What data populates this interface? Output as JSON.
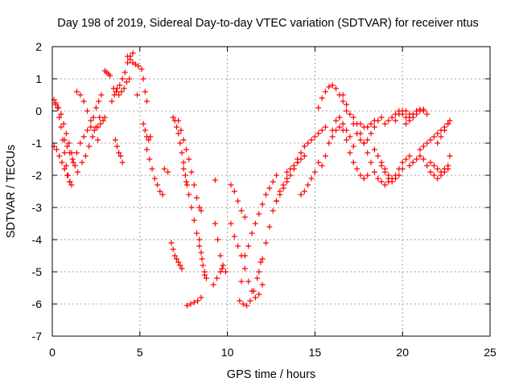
{
  "chart_data": {
    "type": "scatter",
    "title": "Day 198 of 2019, Sidereal Day-to-day VTEC variation (SDTVAR) for receiver ntus",
    "xlabel": "GPS time / hours",
    "ylabel": "SDTVAR / TECUs",
    "xlim": [
      0,
      25
    ],
    "ylim": [
      -7,
      2
    ],
    "x_ticks": [
      0,
      5,
      10,
      15,
      20,
      25
    ],
    "y_ticks": [
      -7,
      -6,
      -5,
      -4,
      -3,
      -2,
      -1,
      0,
      1,
      2
    ],
    "grid": true,
    "marker": "+",
    "color": "#ff0000",
    "series": [
      {
        "x": [
          0.1,
          0.2,
          0.3,
          0.4,
          0.5,
          0.6,
          0.7,
          0.8,
          0.9,
          1.0,
          1.1
        ],
        "y": [
          0.35,
          0.25,
          0.1,
          -0.2,
          -0.5,
          -0.9,
          -1.3,
          -1.7,
          -2.0,
          -2.2,
          -2.3
        ]
      },
      {
        "x": [
          0.1,
          0.25,
          0.4,
          0.55,
          0.7,
          0.85,
          1.0
        ],
        "y": [
          -1.1,
          -1.2,
          -1.4,
          -1.6,
          -1.8,
          -2.0,
          -2.2
        ]
      },
      {
        "x": [
          0.2,
          0.35,
          0.5,
          0.65,
          0.8,
          0.95,
          1.1
        ],
        "y": [
          0.2,
          0.1,
          -0.1,
          -0.4,
          -0.7,
          -1.0,
          -1.3
        ]
      },
      {
        "x": [
          0.7,
          0.85,
          1.0,
          1.15,
          1.3,
          1.45
        ],
        "y": [
          -0.9,
          -1.1,
          -1.3,
          -1.5,
          -1.7,
          -1.9
        ]
      },
      {
        "x": [
          1.2,
          1.4,
          1.6,
          1.8,
          2.0
        ],
        "y": [
          -1.6,
          -1.3,
          -1.0,
          -0.8,
          -0.6
        ]
      },
      {
        "x": [
          1.4,
          1.6,
          1.8,
          2.0,
          2.2,
          2.4,
          2.6
        ],
        "y": [
          0.6,
          0.5,
          0.3,
          0.0,
          -0.3,
          -0.6,
          -0.9
        ]
      },
      {
        "x": [
          1.7,
          1.9,
          2.1,
          2.3,
          2.5,
          2.7
        ],
        "y": [
          -1.6,
          -1.4,
          -1.1,
          -0.8,
          -0.5,
          -0.2
        ]
      },
      {
        "x": [
          2.2,
          2.35,
          2.5,
          2.65,
          2.8
        ],
        "y": [
          -0.5,
          -0.2,
          0.1,
          0.3,
          0.5
        ]
      },
      {
        "x": [
          2.6,
          2.75,
          2.9,
          3.0
        ],
        "y": [
          -0.5,
          -0.4,
          -0.3,
          -0.2
        ]
      },
      {
        "x": [
          3.0,
          3.1,
          3.2,
          3.3
        ],
        "y": [
          1.25,
          1.2,
          1.15,
          1.1
        ]
      },
      {
        "x": [
          3.4,
          3.55,
          3.7,
          3.85,
          4.0,
          4.15,
          4.3,
          4.45,
          4.6
        ],
        "y": [
          0.3,
          0.5,
          0.7,
          0.8,
          1.0,
          1.2,
          1.5,
          1.7,
          1.8
        ]
      },
      {
        "x": [
          3.5,
          3.65,
          3.8,
          3.95,
          4.1,
          4.25,
          4.4
        ],
        "y": [
          0.7,
          0.6,
          0.5,
          0.6,
          0.7,
          0.9,
          1.0
        ]
      },
      {
        "x": [
          3.6,
          3.7,
          3.8,
          3.9,
          4.0
        ],
        "y": [
          -0.9,
          -1.1,
          -1.3,
          -1.4,
          -1.6
        ]
      },
      {
        "x": [
          4.3,
          4.45,
          4.6,
          4.75,
          4.9
        ],
        "y": [
          1.7,
          1.6,
          1.5,
          1.45,
          1.4
        ]
      },
      {
        "x": [
          5.1,
          5.2,
          5.3,
          5.4
        ],
        "y": [
          1.3,
          1.0,
          0.6,
          0.3
        ]
      },
      {
        "x": [
          5.2,
          5.3,
          5.4,
          5.5,
          5.6
        ],
        "y": [
          -0.4,
          -0.6,
          -0.8,
          -0.9,
          -0.8
        ]
      },
      {
        "x": [
          5.4,
          5.55,
          5.7,
          5.85,
          6.0,
          6.15,
          6.3
        ],
        "y": [
          -1.2,
          -1.5,
          -1.8,
          -2.1,
          -2.3,
          -2.5,
          -2.6
        ]
      },
      {
        "x": [
          6.8,
          6.9,
          7.0,
          7.1,
          7.2,
          7.3,
          7.4
        ],
        "y": [
          -4.1,
          -4.3,
          -4.5,
          -4.6,
          -4.7,
          -4.8,
          -4.9
        ]
      },
      {
        "x": [
          6.9,
          7.0,
          7.1,
          7.2,
          7.3,
          7.4,
          7.5,
          7.6,
          7.7
        ],
        "y": [
          -0.2,
          -0.3,
          -0.5,
          -0.7,
          -1.0,
          -1.3,
          -1.6,
          -2.0,
          -2.3
        ]
      },
      {
        "x": [
          7.2,
          7.35,
          7.5,
          7.65,
          7.8,
          7.95,
          8.1,
          8.25,
          8.4,
          8.5
        ],
        "y": [
          -0.3,
          -0.6,
          -0.9,
          -1.2,
          -1.5,
          -1.9,
          -2.3,
          -2.7,
          -3.0,
          -3.1
        ]
      },
      {
        "x": [
          7.5,
          7.65,
          7.8,
          7.95,
          8.1,
          8.25,
          8.4,
          8.55,
          8.7
        ],
        "y": [
          -1.8,
          -2.2,
          -2.6,
          -3.0,
          -3.4,
          -3.8,
          -4.2,
          -4.6,
          -5.0
        ]
      },
      {
        "x": [
          7.7,
          7.9,
          8.1,
          8.3,
          8.5
        ],
        "y": [
          -6.05,
          -6.0,
          -5.95,
          -5.9,
          -5.8
        ]
      },
      {
        "x": [
          8.4,
          8.5,
          8.6,
          8.7,
          8.8
        ],
        "y": [
          -4.0,
          -4.4,
          -4.8,
          -5.1,
          -5.2
        ]
      },
      {
        "x": [
          9.2,
          9.4,
          9.6,
          9.7
        ],
        "y": [
          -5.4,
          -5.2,
          -5.0,
          -4.9
        ]
      },
      {
        "x": [
          9.3,
          9.45,
          9.6,
          9.75,
          9.9
        ],
        "y": [
          -3.5,
          -4.0,
          -4.5,
          -4.8,
          -5.0
        ]
      },
      {
        "x": [
          10.2,
          10.4,
          10.6,
          10.8,
          11.0
        ],
        "y": [
          -2.3,
          -2.5,
          -2.8,
          -3.1,
          -3.3
        ]
      },
      {
        "x": [
          10.2,
          10.4,
          10.6,
          10.8,
          11.0,
          11.2,
          11.4,
          11.6,
          11.8,
          12.0
        ],
        "y": [
          -3.5,
          -3.9,
          -4.2,
          -4.5,
          -4.9,
          -5.3,
          -5.6,
          -5.8,
          -5.7,
          -5.4
        ]
      },
      {
        "x": [
          10.7,
          10.9,
          11.1,
          11.3,
          11.5,
          11.7,
          11.9
        ],
        "y": [
          -5.9,
          -6.0,
          -6.05,
          -5.9,
          -5.6,
          -5.2,
          -4.7
        ]
      },
      {
        "x": [
          11.0,
          11.2,
          11.4,
          11.6,
          11.8,
          12.0,
          12.2,
          12.4,
          12.6,
          12.8
        ],
        "y": [
          -4.5,
          -4.2,
          -3.8,
          -3.5,
          -3.2,
          -2.9,
          -2.6,
          -2.4,
          -2.2,
          -2.0
        ]
      },
      {
        "x": [
          11.8,
          12.0,
          12.2,
          12.4,
          12.6,
          12.8,
          13.0,
          13.2,
          13.4
        ],
        "y": [
          -5.0,
          -4.6,
          -4.1,
          -3.6,
          -3.1,
          -2.8,
          -2.5,
          -2.3,
          -2.1
        ]
      },
      {
        "x": [
          12.8,
          13.0,
          13.2,
          13.4,
          13.6,
          13.8,
          14.0
        ],
        "y": [
          -2.8,
          -2.6,
          -2.4,
          -2.2,
          -2.0,
          -1.8,
          -1.6
        ]
      },
      {
        "x": [
          13.4,
          13.6,
          13.8,
          14.0,
          14.2,
          14.4
        ],
        "y": [
          -1.9,
          -1.8,
          -1.7,
          -1.6,
          -1.5,
          -1.4
        ]
      },
      {
        "x": [
          14.2,
          14.4,
          14.6,
          14.8,
          15.0,
          15.2
        ],
        "y": [
          -2.6,
          -2.5,
          -2.3,
          -2.1,
          -1.9,
          -1.6
        ]
      },
      {
        "x": [
          14.0,
          14.2,
          14.4,
          14.6,
          14.8,
          15.0,
          15.2,
          15.4,
          15.6
        ],
        "y": [
          -1.5,
          -1.3,
          -1.1,
          -1.0,
          -0.9,
          -0.8,
          -0.7,
          -0.6,
          -0.5
        ]
      },
      {
        "x": [
          15.2,
          15.4,
          15.6,
          15.8,
          16.0,
          16.2,
          16.4,
          16.6,
          16.8
        ],
        "y": [
          0.1,
          0.4,
          0.6,
          0.75,
          0.8,
          0.7,
          0.5,
          0.3,
          0.0
        ]
      },
      {
        "x": [
          15.4,
          15.6,
          15.8,
          16.0,
          16.2,
          16.4,
          16.6,
          16.8,
          17.0,
          17.2
        ],
        "y": [
          -1.7,
          -1.4,
          -1.0,
          -0.6,
          -0.3,
          -0.2,
          -0.4,
          -0.6,
          -0.8,
          -1.1
        ]
      },
      {
        "x": [
          16.0,
          16.2,
          16.4,
          16.6,
          16.8,
          17.0,
          17.2,
          17.4,
          17.6,
          17.8,
          18.0
        ],
        "y": [
          -0.8,
          -0.6,
          -0.5,
          -0.6,
          -0.9,
          -1.3,
          -1.6,
          -1.8,
          -2.0,
          -2.1,
          -2.0
        ]
      },
      {
        "x": [
          16.6,
          16.8,
          17.0,
          17.2,
          17.4,
          17.6,
          17.8,
          18.0,
          18.2,
          18.4
        ],
        "y": [
          0.5,
          0.2,
          -0.1,
          -0.4,
          -0.7,
          -0.9,
          -1.0,
          -0.9,
          -0.7,
          -0.5
        ]
      },
      {
        "x": [
          17.2,
          17.4,
          17.6,
          17.8,
          18.0,
          18.2,
          18.4,
          18.6,
          18.8,
          19.0,
          19.2
        ],
        "y": [
          -0.2,
          -0.4,
          -0.7,
          -1.0,
          -1.3,
          -1.6,
          -1.9,
          -2.1,
          -2.2,
          -2.3,
          -2.2
        ]
      },
      {
        "x": [
          17.6,
          17.8,
          18.0,
          18.2,
          18.4,
          18.6,
          18.8
        ],
        "y": [
          -0.4,
          -0.5,
          -0.5,
          -0.4,
          -0.3,
          -0.3,
          -0.2
        ]
      },
      {
        "x": [
          18.4,
          18.6,
          18.8,
          19.0,
          19.2,
          19.4,
          19.6,
          19.8,
          20.0,
          20.2,
          20.4
        ],
        "y": [
          -1.2,
          -1.4,
          -1.6,
          -1.8,
          -2.0,
          -2.1,
          -2.0,
          -1.8,
          -1.6,
          -1.5,
          -1.4
        ]
      },
      {
        "x": [
          18.8,
          19.0,
          19.2,
          19.4,
          19.6,
          19.8,
          20.0
        ],
        "y": [
          -1.7,
          -1.9,
          -2.1,
          -2.2,
          -2.1,
          -2.0,
          -1.8
        ]
      },
      {
        "x": [
          19.0,
          19.2,
          19.4,
          19.6,
          19.8,
          20.0,
          20.2,
          20.4
        ],
        "y": [
          -0.4,
          -0.3,
          -0.2,
          -0.1,
          0.0,
          -0.1,
          -0.2,
          -0.3
        ]
      },
      {
        "x": [
          19.6,
          19.8,
          20.0,
          20.2,
          20.4,
          20.6,
          20.8,
          21.0,
          21.2
        ],
        "y": [
          -0.3,
          -0.1,
          0.0,
          0.0,
          -0.1,
          -0.2,
          -0.1,
          0.0,
          0.05
        ]
      },
      {
        "x": [
          20.2,
          20.4,
          20.6,
          20.8,
          21.0,
          21.2,
          21.4
        ],
        "y": [
          -0.4,
          -0.2,
          -0.1,
          0.0,
          0.05,
          0.0,
          -0.1
        ]
      },
      {
        "x": [
          20.4,
          20.6,
          20.8,
          21.0,
          21.2,
          21.4,
          21.6,
          21.8,
          22.0,
          22.2,
          22.4,
          22.6
        ],
        "y": [
          -1.7,
          -1.6,
          -1.5,
          -1.4,
          -1.5,
          -1.7,
          -1.9,
          -2.0,
          -2.1,
          -2.0,
          -1.9,
          -1.8
        ]
      },
      {
        "x": [
          21.0,
          21.2,
          21.4,
          21.6,
          21.8,
          22.0,
          22.2,
          22.4,
          22.6
        ],
        "y": [
          -1.2,
          -1.1,
          -1.0,
          -0.9,
          -0.8,
          -0.7,
          -0.6,
          -0.5,
          -0.4
        ]
      },
      {
        "x": [
          21.6,
          21.8,
          22.0,
          22.2,
          22.4,
          22.6,
          22.7
        ],
        "y": [
          -1.6,
          -1.7,
          -1.8,
          -1.9,
          -1.8,
          -1.7,
          -1.4
        ]
      },
      {
        "x": [
          22.0,
          22.2,
          22.4,
          22.6,
          22.7
        ],
        "y": [
          -1.0,
          -0.8,
          -0.6,
          -0.4,
          -0.3
        ]
      },
      {
        "x": [
          6.4,
          6.6,
          9.3,
          4.85,
          10.8
        ],
        "y": [
          -1.8,
          -1.9,
          -2.15,
          0.5,
          -5.3
        ]
      }
    ]
  }
}
